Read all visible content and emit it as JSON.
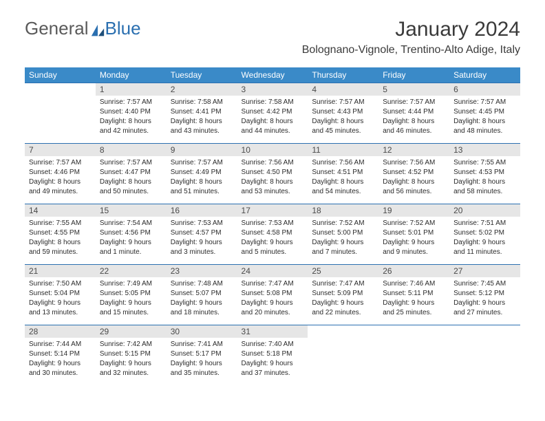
{
  "brand": {
    "part1": "General",
    "part2": "Blue"
  },
  "title": "January 2024",
  "location": "Bolognano-Vignole, Trentino-Alto Adige, Italy",
  "colors": {
    "header_bg": "#3a8ac8",
    "header_text": "#ffffff",
    "numrow_bg": "#e6e6e6",
    "numrow_border": "#2a6fb0",
    "body_text": "#2b2b2b",
    "title_text": "#3a3a3a",
    "logo_gray": "#5a5a5a",
    "logo_blue": "#2a6fb0"
  },
  "dayNames": [
    "Sunday",
    "Monday",
    "Tuesday",
    "Wednesday",
    "Thursday",
    "Friday",
    "Saturday"
  ],
  "weeks": [
    {
      "nums": [
        "",
        "1",
        "2",
        "3",
        "4",
        "5",
        "6"
      ],
      "cells": [
        null,
        {
          "sunrise": "Sunrise: 7:57 AM",
          "sunset": "Sunset: 4:40 PM",
          "day1": "Daylight: 8 hours",
          "day2": "and 42 minutes."
        },
        {
          "sunrise": "Sunrise: 7:58 AM",
          "sunset": "Sunset: 4:41 PM",
          "day1": "Daylight: 8 hours",
          "day2": "and 43 minutes."
        },
        {
          "sunrise": "Sunrise: 7:58 AM",
          "sunset": "Sunset: 4:42 PM",
          "day1": "Daylight: 8 hours",
          "day2": "and 44 minutes."
        },
        {
          "sunrise": "Sunrise: 7:57 AM",
          "sunset": "Sunset: 4:43 PM",
          "day1": "Daylight: 8 hours",
          "day2": "and 45 minutes."
        },
        {
          "sunrise": "Sunrise: 7:57 AM",
          "sunset": "Sunset: 4:44 PM",
          "day1": "Daylight: 8 hours",
          "day2": "and 46 minutes."
        },
        {
          "sunrise": "Sunrise: 7:57 AM",
          "sunset": "Sunset: 4:45 PM",
          "day1": "Daylight: 8 hours",
          "day2": "and 48 minutes."
        }
      ]
    },
    {
      "nums": [
        "7",
        "8",
        "9",
        "10",
        "11",
        "12",
        "13"
      ],
      "cells": [
        {
          "sunrise": "Sunrise: 7:57 AM",
          "sunset": "Sunset: 4:46 PM",
          "day1": "Daylight: 8 hours",
          "day2": "and 49 minutes."
        },
        {
          "sunrise": "Sunrise: 7:57 AM",
          "sunset": "Sunset: 4:47 PM",
          "day1": "Daylight: 8 hours",
          "day2": "and 50 minutes."
        },
        {
          "sunrise": "Sunrise: 7:57 AM",
          "sunset": "Sunset: 4:49 PM",
          "day1": "Daylight: 8 hours",
          "day2": "and 51 minutes."
        },
        {
          "sunrise": "Sunrise: 7:56 AM",
          "sunset": "Sunset: 4:50 PM",
          "day1": "Daylight: 8 hours",
          "day2": "and 53 minutes."
        },
        {
          "sunrise": "Sunrise: 7:56 AM",
          "sunset": "Sunset: 4:51 PM",
          "day1": "Daylight: 8 hours",
          "day2": "and 54 minutes."
        },
        {
          "sunrise": "Sunrise: 7:56 AM",
          "sunset": "Sunset: 4:52 PM",
          "day1": "Daylight: 8 hours",
          "day2": "and 56 minutes."
        },
        {
          "sunrise": "Sunrise: 7:55 AM",
          "sunset": "Sunset: 4:53 PM",
          "day1": "Daylight: 8 hours",
          "day2": "and 58 minutes."
        }
      ]
    },
    {
      "nums": [
        "14",
        "15",
        "16",
        "17",
        "18",
        "19",
        "20"
      ],
      "cells": [
        {
          "sunrise": "Sunrise: 7:55 AM",
          "sunset": "Sunset: 4:55 PM",
          "day1": "Daylight: 8 hours",
          "day2": "and 59 minutes."
        },
        {
          "sunrise": "Sunrise: 7:54 AM",
          "sunset": "Sunset: 4:56 PM",
          "day1": "Daylight: 9 hours",
          "day2": "and 1 minute."
        },
        {
          "sunrise": "Sunrise: 7:53 AM",
          "sunset": "Sunset: 4:57 PM",
          "day1": "Daylight: 9 hours",
          "day2": "and 3 minutes."
        },
        {
          "sunrise": "Sunrise: 7:53 AM",
          "sunset": "Sunset: 4:58 PM",
          "day1": "Daylight: 9 hours",
          "day2": "and 5 minutes."
        },
        {
          "sunrise": "Sunrise: 7:52 AM",
          "sunset": "Sunset: 5:00 PM",
          "day1": "Daylight: 9 hours",
          "day2": "and 7 minutes."
        },
        {
          "sunrise": "Sunrise: 7:52 AM",
          "sunset": "Sunset: 5:01 PM",
          "day1": "Daylight: 9 hours",
          "day2": "and 9 minutes."
        },
        {
          "sunrise": "Sunrise: 7:51 AM",
          "sunset": "Sunset: 5:02 PM",
          "day1": "Daylight: 9 hours",
          "day2": "and 11 minutes."
        }
      ]
    },
    {
      "nums": [
        "21",
        "22",
        "23",
        "24",
        "25",
        "26",
        "27"
      ],
      "cells": [
        {
          "sunrise": "Sunrise: 7:50 AM",
          "sunset": "Sunset: 5:04 PM",
          "day1": "Daylight: 9 hours",
          "day2": "and 13 minutes."
        },
        {
          "sunrise": "Sunrise: 7:49 AM",
          "sunset": "Sunset: 5:05 PM",
          "day1": "Daylight: 9 hours",
          "day2": "and 15 minutes."
        },
        {
          "sunrise": "Sunrise: 7:48 AM",
          "sunset": "Sunset: 5:07 PM",
          "day1": "Daylight: 9 hours",
          "day2": "and 18 minutes."
        },
        {
          "sunrise": "Sunrise: 7:47 AM",
          "sunset": "Sunset: 5:08 PM",
          "day1": "Daylight: 9 hours",
          "day2": "and 20 minutes."
        },
        {
          "sunrise": "Sunrise: 7:47 AM",
          "sunset": "Sunset: 5:09 PM",
          "day1": "Daylight: 9 hours",
          "day2": "and 22 minutes."
        },
        {
          "sunrise": "Sunrise: 7:46 AM",
          "sunset": "Sunset: 5:11 PM",
          "day1": "Daylight: 9 hours",
          "day2": "and 25 minutes."
        },
        {
          "sunrise": "Sunrise: 7:45 AM",
          "sunset": "Sunset: 5:12 PM",
          "day1": "Daylight: 9 hours",
          "day2": "and 27 minutes."
        }
      ]
    },
    {
      "nums": [
        "28",
        "29",
        "30",
        "31",
        "",
        "",
        ""
      ],
      "cells": [
        {
          "sunrise": "Sunrise: 7:44 AM",
          "sunset": "Sunset: 5:14 PM",
          "day1": "Daylight: 9 hours",
          "day2": "and 30 minutes."
        },
        {
          "sunrise": "Sunrise: 7:42 AM",
          "sunset": "Sunset: 5:15 PM",
          "day1": "Daylight: 9 hours",
          "day2": "and 32 minutes."
        },
        {
          "sunrise": "Sunrise: 7:41 AM",
          "sunset": "Sunset: 5:17 PM",
          "day1": "Daylight: 9 hours",
          "day2": "and 35 minutes."
        },
        {
          "sunrise": "Sunrise: 7:40 AM",
          "sunset": "Sunset: 5:18 PM",
          "day1": "Daylight: 9 hours",
          "day2": "and 37 minutes."
        },
        null,
        null,
        null
      ]
    }
  ]
}
